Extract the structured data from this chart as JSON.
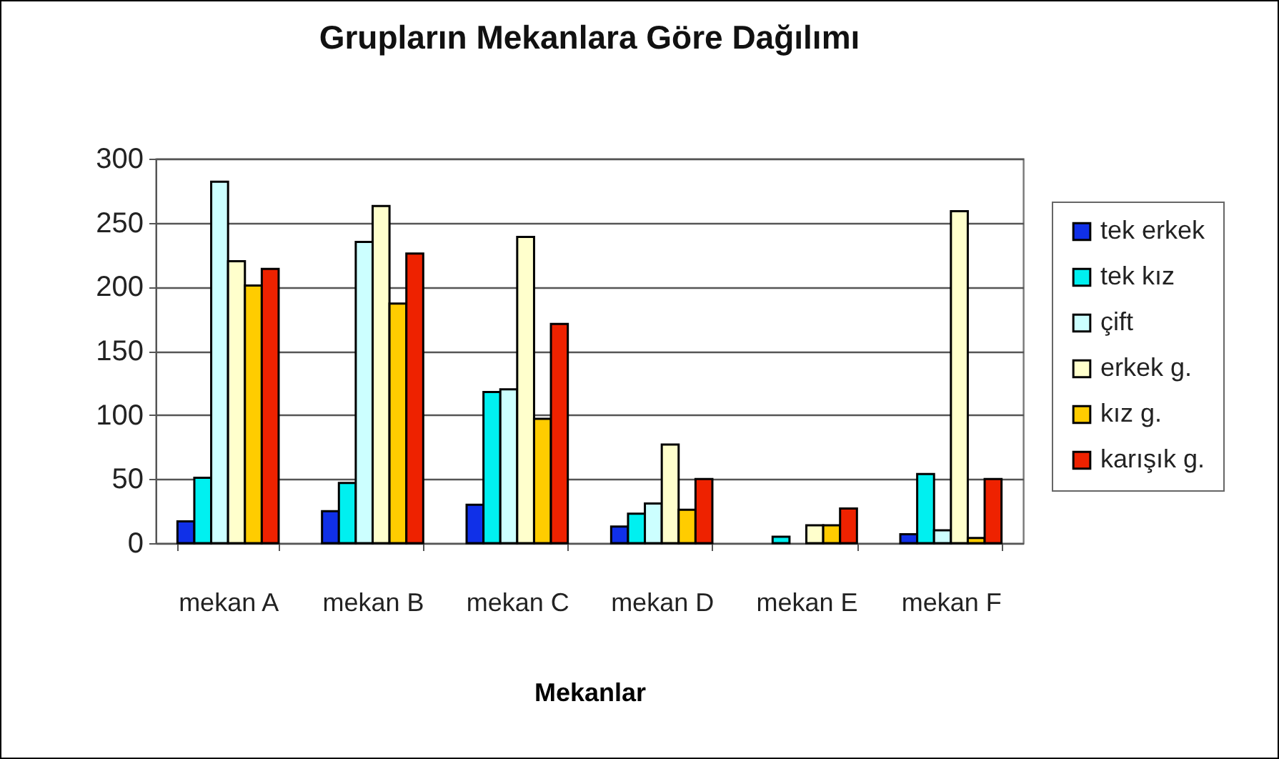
{
  "chart_data": {
    "type": "bar",
    "title": "Grupların Mekanlara Göre Dağılımı",
    "xlabel": "Mekanlar",
    "categories": [
      "mekan A",
      "mekan B",
      "mekan C",
      "mekan D",
      "mekan E",
      "mekan F"
    ],
    "series": [
      {
        "name": "tek erkek",
        "color": "#1030e8",
        "values": [
          17,
          25,
          30,
          13,
          0,
          7
        ]
      },
      {
        "name": "tek kız",
        "color": "#00f0f0",
        "values": [
          51,
          47,
          118,
          23,
          5,
          54
        ]
      },
      {
        "name": "çift",
        "color": "#ccffff",
        "values": [
          282,
          235,
          120,
          31,
          0,
          10
        ]
      },
      {
        "name": "erkek g.",
        "color": "#ffffcc",
        "values": [
          220,
          263,
          239,
          77,
          14,
          259
        ]
      },
      {
        "name": "kız g.",
        "color": "#ffcc00",
        "values": [
          201,
          187,
          97,
          26,
          14,
          4
        ]
      },
      {
        "name": "karışık g.",
        "color": "#ee2200",
        "values": [
          214,
          226,
          171,
          50,
          27,
          50
        ]
      }
    ],
    "ylim": [
      0,
      300
    ],
    "yticks": [
      0,
      50,
      100,
      150,
      200,
      250,
      300
    ],
    "grid": "y",
    "legend": "right"
  }
}
